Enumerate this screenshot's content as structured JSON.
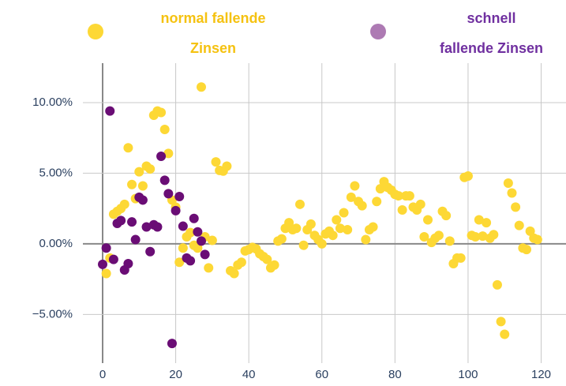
{
  "chart_data": {
    "type": "scatter",
    "xlim": [
      -5.4,
      126.8
    ],
    "ylim": [
      -8.44,
      12.79
    ],
    "xticks": [
      0,
      20,
      40,
      60,
      80,
      100,
      120
    ],
    "yticks": [
      {
        "value": -5,
        "label": "−5.00%"
      },
      {
        "value": 0,
        "label": "0.00%"
      },
      {
        "value": 5,
        "label": "5.00%"
      },
      {
        "value": 10,
        "label": "10.00%"
      }
    ],
    "grid": true,
    "series": [
      {
        "name": "normal fallende Zinsen",
        "color": "#fdd835",
        "x": [
          1,
          2,
          3,
          4,
          5,
          6,
          7,
          8,
          9,
          10,
          11,
          12,
          13,
          14,
          15,
          16,
          17,
          18,
          19,
          20,
          21,
          22,
          23,
          24,
          25,
          26,
          27,
          28,
          29,
          30,
          31,
          32,
          33,
          34,
          35,
          36,
          37,
          38,
          39,
          40,
          41,
          42,
          43,
          44,
          45,
          46,
          47,
          48,
          49,
          50,
          51,
          52,
          53,
          54,
          55,
          56,
          57,
          58,
          59,
          60,
          61,
          62,
          63,
          64,
          65,
          66,
          67,
          68,
          69,
          70,
          71,
          72,
          73,
          74,
          75,
          76,
          77,
          78,
          79,
          80,
          81,
          82,
          83,
          84,
          85,
          86,
          87,
          88,
          89,
          90,
          91,
          92,
          93,
          94,
          95,
          96,
          97,
          98,
          99,
          100,
          101,
          102,
          103,
          104,
          105,
          106,
          107,
          108,
          109,
          110,
          111,
          112,
          113,
          114,
          115,
          116,
          117,
          118,
          119
        ],
        "values": [
          -2.1,
          -1.0,
          2.1,
          2.3,
          2.5,
          2.8,
          6.8,
          4.2,
          3.2,
          5.1,
          4.1,
          5.5,
          5.3,
          9.1,
          9.4,
          9.3,
          8.1,
          6.4,
          3.1,
          2.6,
          -1.3,
          -0.3,
          0.5,
          0.8,
          -0.1,
          -0.3,
          11.1,
          0.5,
          -1.7,
          0.25,
          5.8,
          5.2,
          5.15,
          5.5,
          -1.9,
          -2.1,
          -1.5,
          -1.3,
          -0.5,
          -0.4,
          -0.25,
          -0.35,
          -0.7,
          -0.9,
          -1.1,
          -1.7,
          -1.5,
          0.2,
          0.35,
          1.1,
          1.5,
          1.0,
          1.1,
          2.8,
          -0.1,
          1.0,
          1.4,
          0.6,
          0.3,
          0.0,
          0.7,
          0.9,
          0.6,
          1.7,
          1.1,
          2.2,
          1.0,
          3.3,
          4.1,
          3.0,
          2.7,
          0.3,
          1.0,
          1.2,
          3.0,
          3.9,
          4.4,
          4.0,
          3.8,
          3.5,
          3.4,
          2.4,
          3.4,
          3.4,
          2.6,
          2.4,
          2.8,
          0.5,
          1.7,
          0.1,
          0.4,
          0.6,
          2.3,
          2.0,
          0.2,
          -1.4,
          -1.0,
          -1.0,
          4.7,
          4.8,
          0.6,
          0.5,
          1.7,
          0.55,
          1.5,
          0.4,
          0.65,
          -2.9,
          -5.5,
          -6.4,
          4.3,
          3.6,
          2.6,
          1.3,
          -0.3,
          -0.4,
          0.9,
          0.4,
          0.3
        ]
      },
      {
        "name": "schnell fallende Zinsen",
        "color": "#6a0d75",
        "x": [
          0,
          1,
          2,
          3,
          4,
          5,
          6,
          7,
          8,
          9,
          10,
          11,
          12,
          13,
          14,
          15,
          16,
          17,
          18,
          19,
          20,
          21,
          22,
          23,
          24,
          25,
          26,
          27,
          28
        ],
        "values": [
          -1.45,
          -0.3,
          9.4,
          -1.1,
          1.45,
          1.65,
          -1.85,
          -1.4,
          1.55,
          0.3,
          3.3,
          3.1,
          1.2,
          -0.55,
          1.35,
          1.2,
          6.2,
          4.5,
          3.55,
          -7.05,
          2.35,
          3.35,
          1.25,
          -1.0,
          -1.2,
          1.8,
          0.85,
          0.2,
          -0.75
        ]
      }
    ]
  }
}
